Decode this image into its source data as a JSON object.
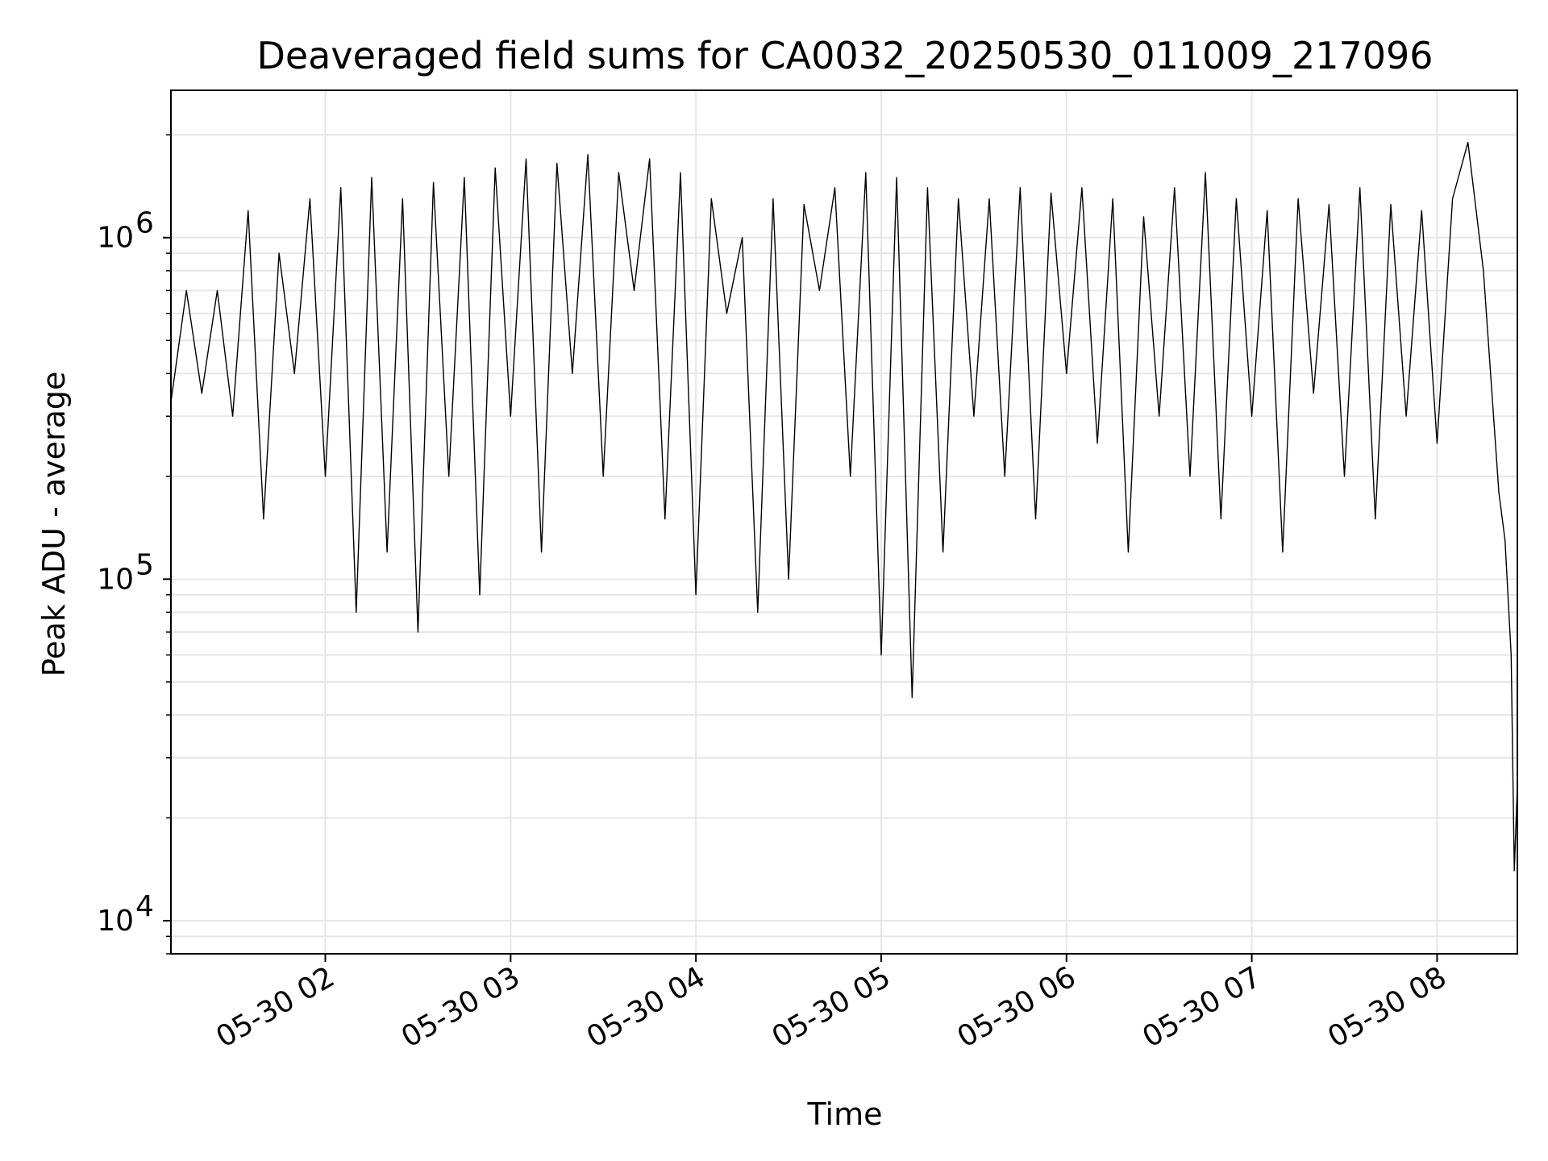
{
  "chart_data": {
    "type": "line",
    "title": "Deaveraged field sums for CA0032_20250530_011009_217096",
    "xlabel": "Time",
    "ylabel": "Peak ADU - average",
    "y_scale": "log",
    "ylim": [
      8000,
      2700000
    ],
    "xlim": [
      "05-30 01:10",
      "05-30 08:26"
    ],
    "grid": true,
    "legend": "none",
    "line_color": "#000000",
    "grid_color": "#e6e6e6",
    "x_ticks": [
      {
        "label": "05-30 02",
        "value": "05-30 02:00"
      },
      {
        "label": "05-30 03",
        "value": "05-30 03:00"
      },
      {
        "label": "05-30 04",
        "value": "05-30 04:00"
      },
      {
        "label": "05-30 05",
        "value": "05-30 05:00"
      },
      {
        "label": "05-30 06",
        "value": "05-30 06:00"
      },
      {
        "label": "05-30 07",
        "value": "05-30 07:00"
      },
      {
        "label": "05-30 08",
        "value": "05-30 08:00"
      }
    ],
    "y_ticks": [
      {
        "base": "10",
        "exp": "4",
        "value": 10000
      },
      {
        "base": "10",
        "exp": "5",
        "value": 100000
      },
      {
        "base": "10",
        "exp": "6",
        "value": 1000000
      }
    ],
    "series": [
      {
        "x": [
          "05-30 01:10",
          "05-30 01:15",
          "05-30 01:20",
          "05-30 01:25",
          "05-30 01:30",
          "05-30 01:35",
          "05-30 01:40",
          "05-30 01:45",
          "05-30 01:50",
          "05-30 01:55",
          "05-30 02:00",
          "05-30 02:05",
          "05-30 02:10",
          "05-30 02:15",
          "05-30 02:20",
          "05-30 02:25",
          "05-30 02:30",
          "05-30 02:35",
          "05-30 02:40",
          "05-30 02:45",
          "05-30 02:50",
          "05-30 02:55",
          "05-30 03:00",
          "05-30 03:05",
          "05-30 03:10",
          "05-30 03:15",
          "05-30 03:20",
          "05-30 03:25",
          "05-30 03:30",
          "05-30 03:35",
          "05-30 03:40",
          "05-30 03:45",
          "05-30 03:50",
          "05-30 03:55",
          "05-30 04:00",
          "05-30 04:05",
          "05-30 04:10",
          "05-30 04:15",
          "05-30 04:20",
          "05-30 04:25",
          "05-30 04:30",
          "05-30 04:35",
          "05-30 04:40",
          "05-30 04:45",
          "05-30 04:50",
          "05-30 04:55",
          "05-30 05:00",
          "05-30 05:05",
          "05-30 05:10",
          "05-30 05:15",
          "05-30 05:20",
          "05-30 05:25",
          "05-30 05:30",
          "05-30 05:35",
          "05-30 05:40",
          "05-30 05:45",
          "05-30 05:50",
          "05-30 05:55",
          "05-30 06:00",
          "05-30 06:05",
          "05-30 06:10",
          "05-30 06:15",
          "05-30 06:20",
          "05-30 06:25",
          "05-30 06:30",
          "05-30 06:35",
          "05-30 06:40",
          "05-30 06:45",
          "05-30 06:50",
          "05-30 06:55",
          "05-30 07:00",
          "05-30 07:05",
          "05-30 07:10",
          "05-30 07:15",
          "05-30 07:20",
          "05-30 07:25",
          "05-30 07:30",
          "05-30 07:35",
          "05-30 07:40",
          "05-30 07:45",
          "05-30 07:50",
          "05-30 07:55",
          "05-30 08:00",
          "05-30 08:05",
          "05-30 08:10",
          "05-30 08:15",
          "05-30 08:20",
          "05-30 08:22",
          "05-30 08:24",
          "05-30 08:25",
          "05-30 08:26"
        ],
        "y": [
          330000,
          700000,
          350000,
          700000,
          300000,
          1200000,
          150000,
          900000,
          400000,
          1300000,
          200000,
          1400000,
          80000,
          1500000,
          120000,
          1300000,
          70000,
          1450000,
          200000,
          1500000,
          90000,
          1600000,
          300000,
          1700000,
          120000,
          1650000,
          400000,
          1750000,
          200000,
          1550000,
          700000,
          1700000,
          150000,
          1550000,
          90000,
          1300000,
          600000,
          1000000,
          80000,
          1300000,
          100000,
          1250000,
          700000,
          1400000,
          200000,
          1550000,
          60000,
          1500000,
          45000,
          1400000,
          120000,
          1300000,
          300000,
          1300000,
          200000,
          1400000,
          150000,
          1350000,
          400000,
          1400000,
          250000,
          1300000,
          120000,
          1150000,
          300000,
          1400000,
          200000,
          1550000,
          150000,
          1300000,
          300000,
          1200000,
          120000,
          1300000,
          350000,
          1250000,
          200000,
          1400000,
          150000,
          1250000,
          300000,
          1200000,
          250000,
          1300000,
          1900000,
          800000,
          180000,
          130000,
          60000,
          14000,
          25000
        ]
      }
    ]
  }
}
